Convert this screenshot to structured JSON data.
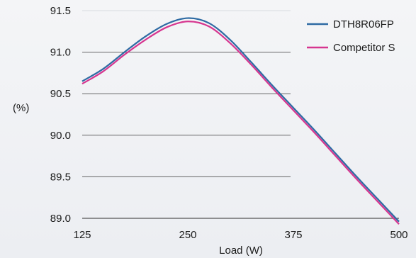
{
  "chart_data": {
    "type": "line",
    "title": "",
    "xlabel": "Load (W)",
    "ylabel": "(%)",
    "xlim": [
      125,
      500
    ],
    "ylim": [
      89.0,
      91.5
    ],
    "x_ticks": [
      "125",
      "250",
      "375",
      "500"
    ],
    "y_ticks": [
      "89.0",
      "89.5",
      "90.0",
      "90.5",
      "91.0",
      "91.5"
    ],
    "grid": "horizontal",
    "legend_position": "top-right",
    "series": [
      {
        "name": "DTH8R06FP",
        "color": "#2e6aa3",
        "x": [
          125,
          150,
          175,
          200,
          225,
          250,
          275,
          300,
          325,
          350,
          375,
          400,
          425,
          450,
          475,
          500
        ],
        "values": [
          90.65,
          90.8,
          91.0,
          91.19,
          91.34,
          91.41,
          91.35,
          91.15,
          90.88,
          90.6,
          90.33,
          90.06,
          89.78,
          89.5,
          89.23,
          88.96
        ]
      },
      {
        "name": "Competitor S",
        "color": "#d6358f",
        "x": [
          125,
          150,
          175,
          200,
          225,
          250,
          275,
          300,
          325,
          350,
          375,
          400,
          425,
          450,
          475,
          500
        ],
        "values": [
          90.62,
          90.77,
          90.97,
          91.15,
          91.3,
          91.37,
          91.31,
          91.11,
          90.85,
          90.57,
          90.3,
          90.03,
          89.75,
          89.47,
          89.2,
          88.93
        ]
      }
    ]
  }
}
